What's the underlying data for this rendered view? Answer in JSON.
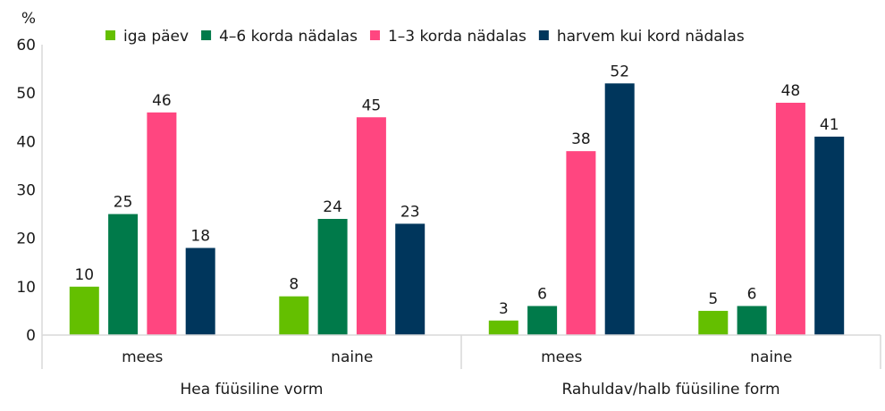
{
  "chart_data": {
    "type": "bar",
    "yunit": "%",
    "ylim": [
      0,
      60
    ],
    "yticks": [
      0,
      10,
      20,
      30,
      40,
      50,
      60
    ],
    "grid": false,
    "legend_position": "top",
    "groups": [
      {
        "label": "Hea füüsiline vorm",
        "categories": [
          "mees",
          "naine"
        ]
      },
      {
        "label": "Rahuldav/halb füüsiline form",
        "categories": [
          "mees",
          "naine"
        ]
      }
    ],
    "series": [
      {
        "name": "iga päev",
        "color": "#64bf00",
        "values": [
          10,
          8,
          3,
          5
        ]
      },
      {
        "name": "4–6 korda nädalas",
        "color": "#007a4a",
        "values": [
          25,
          24,
          6,
          6
        ]
      },
      {
        "name": "1–3 korda nädalas",
        "color": "#ff4680",
        "values": [
          46,
          45,
          38,
          48
        ]
      },
      {
        "name": "harvem kui kord nädalas",
        "color": "#00365c",
        "values": [
          18,
          23,
          52,
          41
        ]
      }
    ]
  }
}
